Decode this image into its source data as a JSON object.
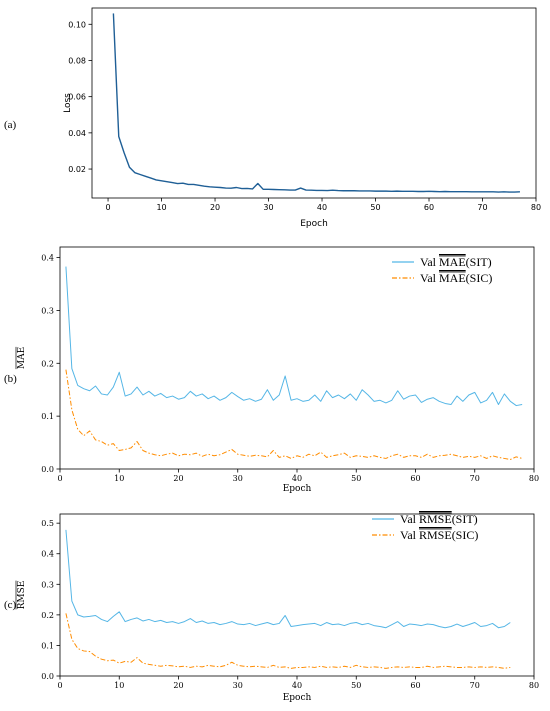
{
  "chart_data": [
    {
      "type": "line",
      "panel_label": "(a)",
      "xlabel": "Epoch",
      "ylabel": "Loss",
      "xlim": [
        -3,
        80
      ],
      "ylim": [
        0.004,
        0.109
      ],
      "xticks": [
        0,
        10,
        20,
        30,
        40,
        50,
        60,
        70,
        80
      ],
      "yticks": [
        0.02,
        0.04,
        0.06,
        0.08,
        0.1
      ],
      "ytick_labels": [
        "0.02",
        "0.04",
        "0.06",
        "0.08",
        "0.10"
      ],
      "series": [
        {
          "color": "#1f5f96",
          "x": [
            1,
            2,
            3,
            4,
            5,
            6,
            7,
            8,
            9,
            10,
            11,
            12,
            13,
            14,
            15,
            16,
            17,
            18,
            19,
            20,
            21,
            22,
            23,
            24,
            25,
            26,
            27,
            28,
            29,
            30,
            31,
            32,
            33,
            34,
            35,
            36,
            37,
            38,
            39,
            40,
            41,
            42,
            43,
            44,
            45,
            46,
            47,
            48,
            49,
            50,
            51,
            52,
            53,
            54,
            55,
            56,
            57,
            58,
            59,
            60,
            61,
            62,
            63,
            64,
            65,
            66,
            67,
            68,
            69,
            70,
            71,
            72,
            73,
            74,
            75,
            76,
            77
          ],
          "values": [
            0.106,
            0.038,
            0.029,
            0.021,
            0.018,
            0.017,
            0.016,
            0.015,
            0.014,
            0.0135,
            0.013,
            0.0125,
            0.012,
            0.0122,
            0.0115,
            0.0115,
            0.011,
            0.0105,
            0.0102,
            0.01,
            0.0098,
            0.0095,
            0.0094,
            0.0098,
            0.0092,
            0.0093,
            0.009,
            0.012,
            0.0088,
            0.0088,
            0.0087,
            0.0086,
            0.0085,
            0.0084,
            0.0084,
            0.0095,
            0.0084,
            0.0083,
            0.0082,
            0.0082,
            0.0081,
            0.0083,
            0.0081,
            0.008,
            0.008,
            0.008,
            0.0079,
            0.0079,
            0.0079,
            0.0078,
            0.0078,
            0.0078,
            0.0077,
            0.0078,
            0.0077,
            0.0077,
            0.0077,
            0.0076,
            0.0076,
            0.0077,
            0.0076,
            0.0075,
            0.0076,
            0.0075,
            0.0075,
            0.0075,
            0.0075,
            0.0074,
            0.0074,
            0.0074,
            0.0074,
            0.0074,
            0.0073,
            0.0074,
            0.0073,
            0.0073,
            0.0074
          ]
        }
      ]
    },
    {
      "type": "line",
      "panel_label": "(b)",
      "xlabel": "Epoch",
      "ylabel": "MAE",
      "ylabel_overline": true,
      "xlim": [
        0,
        80
      ],
      "ylim": [
        0,
        0.42
      ],
      "xticks": [
        0,
        10,
        20,
        30,
        40,
        50,
        60,
        70,
        80
      ],
      "yticks": [
        0.0,
        0.1,
        0.2,
        0.3,
        0.4
      ],
      "ytick_labels": [
        "0.0",
        "0.1",
        "0.2",
        "0.3",
        "0.4"
      ],
      "legend_position": "top-right",
      "series": [
        {
          "name_prefix": "Val ",
          "name_metric": "MAE",
          "name_suffix": "(SIT)",
          "color": "#55b6e6",
          "dash": "",
          "x": [
            1,
            2,
            3,
            4,
            5,
            6,
            7,
            8,
            9,
            10,
            11,
            12,
            13,
            14,
            15,
            16,
            17,
            18,
            19,
            20,
            21,
            22,
            23,
            24,
            25,
            26,
            27,
            28,
            29,
            30,
            31,
            32,
            33,
            34,
            35,
            36,
            37,
            38,
            39,
            40,
            41,
            42,
            43,
            44,
            45,
            46,
            47,
            48,
            49,
            50,
            51,
            52,
            53,
            54,
            55,
            56,
            57,
            58,
            59,
            60,
            61,
            62,
            63,
            64,
            65,
            66,
            67,
            68,
            69,
            70,
            71,
            72,
            73,
            74,
            75,
            76,
            77,
            78
          ],
          "values": [
            0.383,
            0.19,
            0.158,
            0.152,
            0.148,
            0.157,
            0.142,
            0.14,
            0.155,
            0.183,
            0.138,
            0.142,
            0.155,
            0.14,
            0.147,
            0.138,
            0.143,
            0.135,
            0.138,
            0.132,
            0.135,
            0.147,
            0.138,
            0.142,
            0.133,
            0.138,
            0.13,
            0.135,
            0.145,
            0.137,
            0.13,
            0.133,
            0.128,
            0.132,
            0.15,
            0.13,
            0.14,
            0.176,
            0.13,
            0.133,
            0.128,
            0.13,
            0.14,
            0.128,
            0.148,
            0.135,
            0.14,
            0.133,
            0.142,
            0.13,
            0.15,
            0.14,
            0.128,
            0.13,
            0.125,
            0.13,
            0.148,
            0.132,
            0.138,
            0.14,
            0.126,
            0.132,
            0.135,
            0.128,
            0.124,
            0.122,
            0.138,
            0.128,
            0.14,
            0.145,
            0.125,
            0.13,
            0.145,
            0.122,
            0.142,
            0.128,
            0.12,
            0.122
          ]
        },
        {
          "name_prefix": "Val ",
          "name_metric": "MAE",
          "name_suffix": "(SIC)",
          "color": "#ff8c00",
          "dash": "5,2,1.5,2",
          "x": [
            1,
            2,
            3,
            4,
            5,
            6,
            7,
            8,
            9,
            10,
            11,
            12,
            13,
            14,
            15,
            16,
            17,
            18,
            19,
            20,
            21,
            22,
            23,
            24,
            25,
            26,
            27,
            28,
            29,
            30,
            31,
            32,
            33,
            34,
            35,
            36,
            37,
            38,
            39,
            40,
            41,
            42,
            43,
            44,
            45,
            46,
            47,
            48,
            49,
            50,
            51,
            52,
            53,
            54,
            55,
            56,
            57,
            58,
            59,
            60,
            61,
            62,
            63,
            64,
            65,
            66,
            67,
            68,
            69,
            70,
            71,
            72,
            73,
            74,
            75,
            76,
            77,
            78
          ],
          "values": [
            0.188,
            0.112,
            0.075,
            0.063,
            0.072,
            0.055,
            0.052,
            0.045,
            0.048,
            0.035,
            0.037,
            0.04,
            0.052,
            0.035,
            0.03,
            0.027,
            0.025,
            0.028,
            0.03,
            0.025,
            0.028,
            0.027,
            0.03,
            0.024,
            0.028,
            0.025,
            0.027,
            0.032,
            0.037,
            0.028,
            0.026,
            0.024,
            0.026,
            0.025,
            0.023,
            0.035,
            0.022,
            0.025,
            0.02,
            0.025,
            0.022,
            0.028,
            0.025,
            0.032,
            0.022,
            0.025,
            0.027,
            0.03,
            0.022,
            0.025,
            0.024,
            0.022,
            0.025,
            0.022,
            0.02,
            0.025,
            0.028,
            0.022,
            0.025,
            0.025,
            0.022,
            0.028,
            0.022,
            0.025,
            0.026,
            0.028,
            0.025,
            0.022,
            0.024,
            0.022,
            0.025,
            0.02,
            0.025,
            0.022,
            0.02,
            0.018,
            0.023,
            0.02
          ]
        }
      ]
    },
    {
      "type": "line",
      "panel_label": "(c)",
      "xlabel": "Epoch",
      "ylabel": "RMSE",
      "ylabel_overline": true,
      "xlim": [
        0,
        80
      ],
      "ylim": [
        0,
        0.53
      ],
      "xticks": [
        0,
        10,
        20,
        30,
        40,
        50,
        60,
        70,
        80
      ],
      "yticks": [
        0.0,
        0.1,
        0.2,
        0.3,
        0.4,
        0.5
      ],
      "ytick_labels": [
        "0.0",
        "0.1",
        "0.2",
        "0.3",
        "0.4",
        "0.5"
      ],
      "legend_position": "top-right",
      "series": [
        {
          "name_prefix": "Val ",
          "name_metric": "RMSE",
          "name_suffix": "(SIT)",
          "color": "#55b6e6",
          "dash": "",
          "x": [
            1,
            2,
            3,
            4,
            5,
            6,
            7,
            8,
            9,
            10,
            11,
            12,
            13,
            14,
            15,
            16,
            17,
            18,
            19,
            20,
            21,
            22,
            23,
            24,
            25,
            26,
            27,
            28,
            29,
            30,
            31,
            32,
            33,
            34,
            35,
            36,
            37,
            38,
            39,
            40,
            41,
            42,
            43,
            44,
            45,
            46,
            47,
            48,
            49,
            50,
            51,
            52,
            53,
            54,
            55,
            56,
            57,
            58,
            59,
            60,
            61,
            62,
            63,
            64,
            65,
            66,
            67,
            68,
            69,
            70,
            71,
            72,
            73,
            74,
            75,
            76
          ],
          "values": [
            0.478,
            0.245,
            0.2,
            0.193,
            0.195,
            0.198,
            0.185,
            0.178,
            0.195,
            0.21,
            0.178,
            0.185,
            0.19,
            0.18,
            0.185,
            0.178,
            0.182,
            0.175,
            0.178,
            0.172,
            0.178,
            0.188,
            0.175,
            0.18,
            0.172,
            0.175,
            0.168,
            0.172,
            0.178,
            0.17,
            0.168,
            0.172,
            0.165,
            0.17,
            0.175,
            0.168,
            0.172,
            0.198,
            0.162,
            0.165,
            0.168,
            0.17,
            0.172,
            0.165,
            0.175,
            0.168,
            0.17,
            0.165,
            0.172,
            0.175,
            0.168,
            0.172,
            0.165,
            0.162,
            0.158,
            0.168,
            0.178,
            0.162,
            0.17,
            0.168,
            0.165,
            0.17,
            0.168,
            0.162,
            0.158,
            0.162,
            0.17,
            0.162,
            0.168,
            0.175,
            0.162,
            0.165,
            0.172,
            0.158,
            0.162,
            0.175
          ]
        },
        {
          "name_prefix": "Val ",
          "name_metric": "RMSE",
          "name_suffix": "(SIC)",
          "color": "#ff8c00",
          "dash": "5,2,1.5,2",
          "x": [
            1,
            2,
            3,
            4,
            5,
            6,
            7,
            8,
            9,
            10,
            11,
            12,
            13,
            14,
            15,
            16,
            17,
            18,
            19,
            20,
            21,
            22,
            23,
            24,
            25,
            26,
            27,
            28,
            29,
            30,
            31,
            32,
            33,
            34,
            35,
            36,
            37,
            38,
            39,
            40,
            41,
            42,
            43,
            44,
            45,
            46,
            47,
            48,
            49,
            50,
            51,
            52,
            53,
            54,
            55,
            56,
            57,
            58,
            59,
            60,
            61,
            62,
            63,
            64,
            65,
            66,
            67,
            68,
            69,
            70,
            71,
            72,
            73,
            74,
            75,
            76
          ],
          "values": [
            0.205,
            0.12,
            0.09,
            0.082,
            0.08,
            0.065,
            0.055,
            0.05,
            0.052,
            0.042,
            0.048,
            0.045,
            0.06,
            0.042,
            0.038,
            0.035,
            0.032,
            0.035,
            0.033,
            0.03,
            0.032,
            0.028,
            0.032,
            0.03,
            0.035,
            0.032,
            0.03,
            0.035,
            0.045,
            0.035,
            0.032,
            0.03,
            0.032,
            0.03,
            0.028,
            0.035,
            0.028,
            0.03,
            0.025,
            0.028,
            0.028,
            0.03,
            0.028,
            0.032,
            0.028,
            0.03,
            0.028,
            0.032,
            0.028,
            0.035,
            0.03,
            0.028,
            0.03,
            0.028,
            0.025,
            0.028,
            0.03,
            0.028,
            0.03,
            0.028,
            0.028,
            0.032,
            0.028,
            0.03,
            0.032,
            0.03,
            0.028,
            0.028,
            0.03,
            0.028,
            0.03,
            0.028,
            0.03,
            0.028,
            0.025,
            0.028
          ]
        }
      ]
    }
  ]
}
